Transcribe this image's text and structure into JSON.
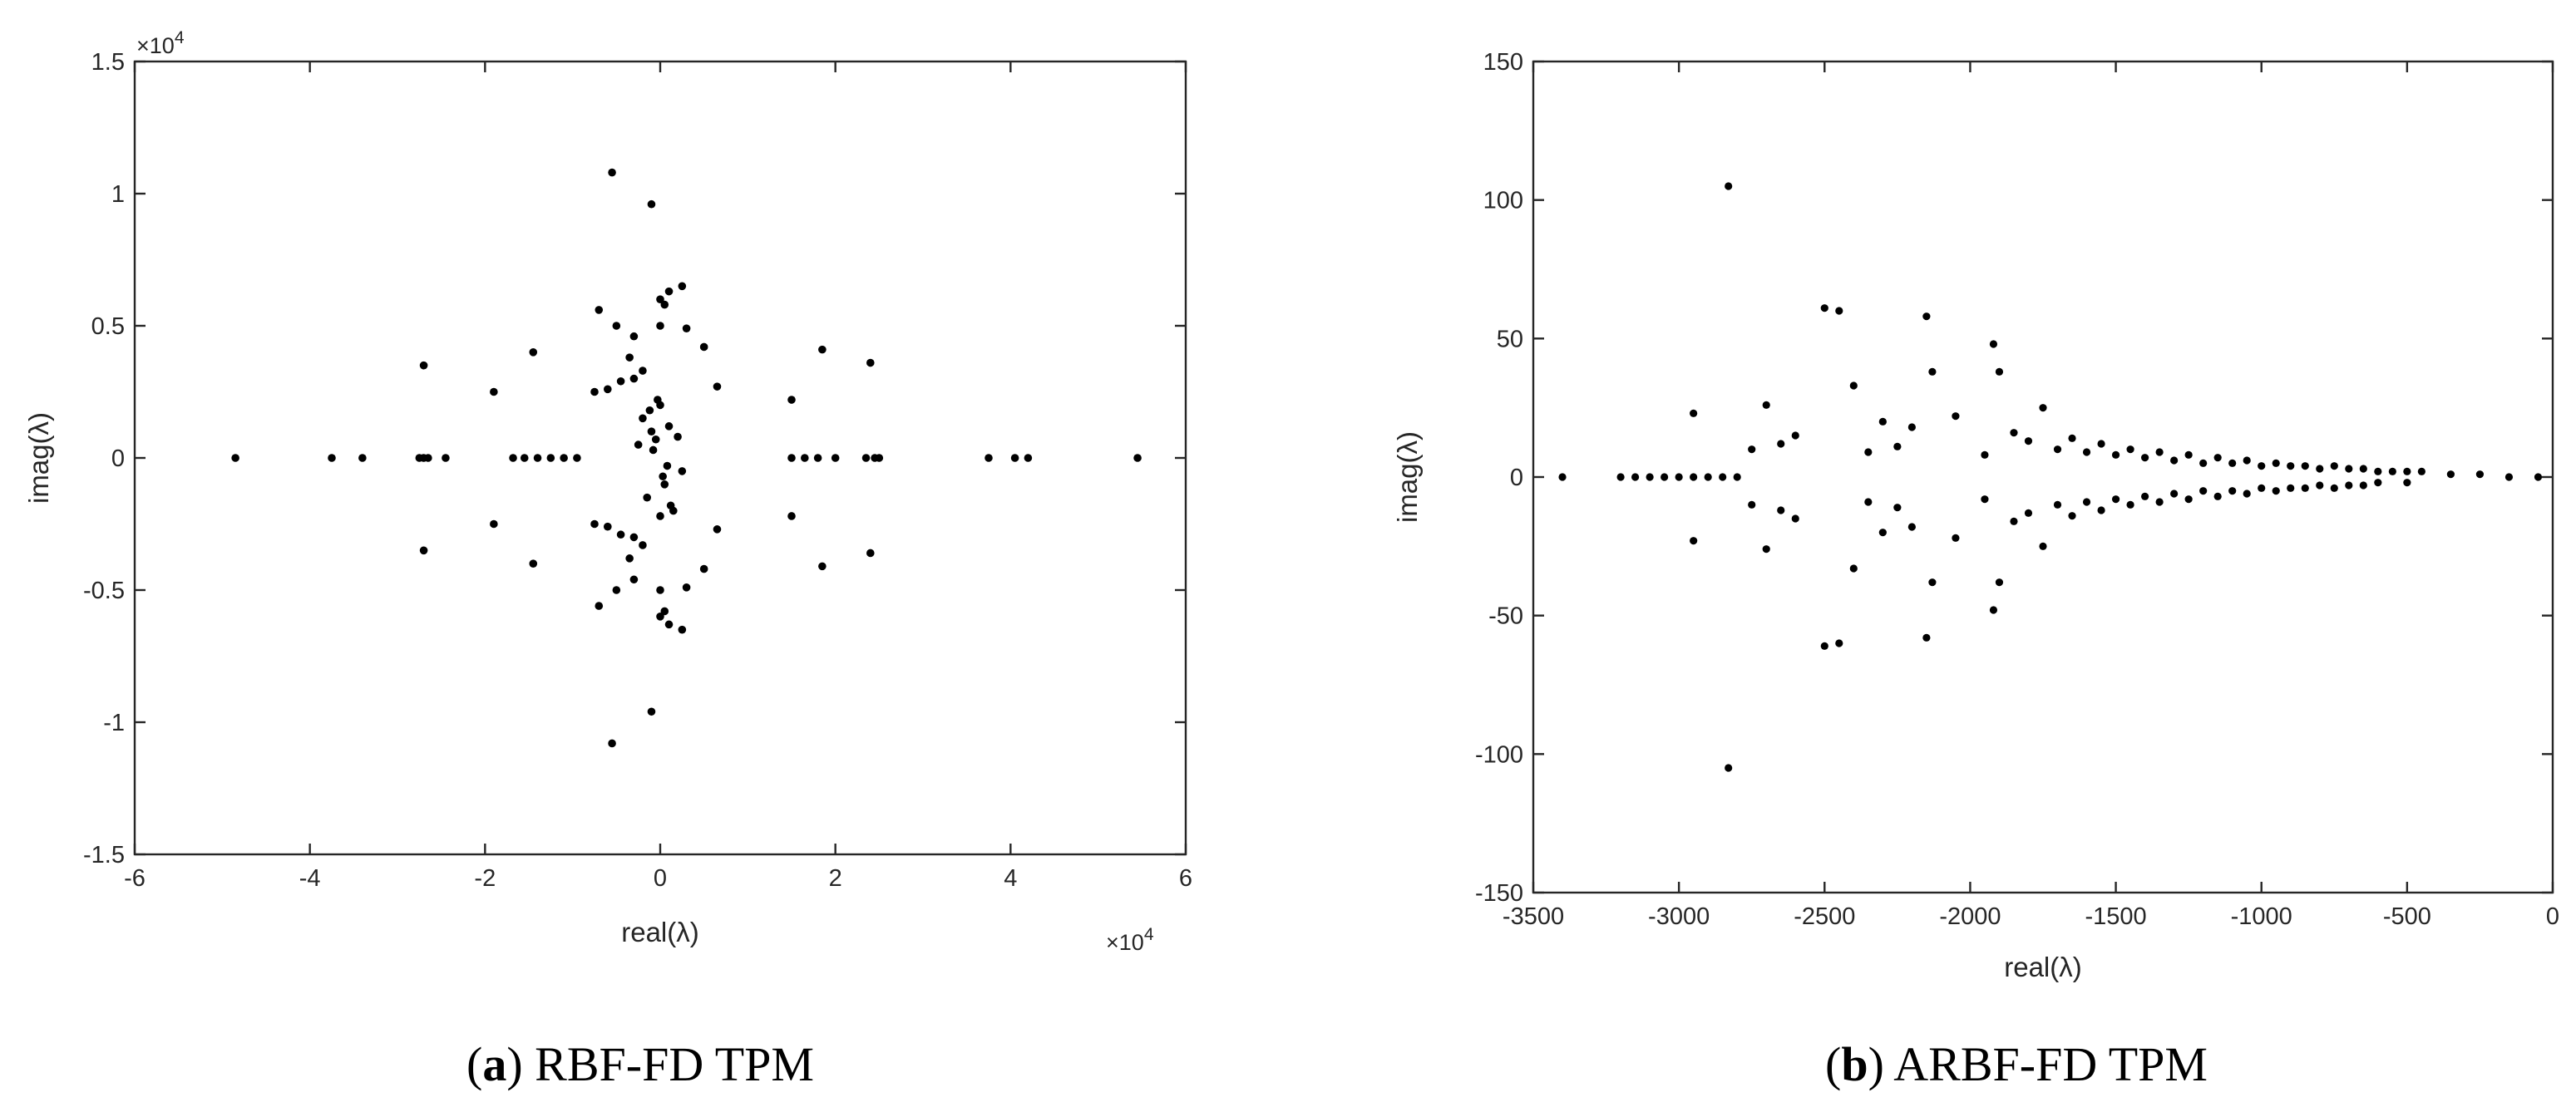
{
  "chart_data": [
    {
      "type": "scatter",
      "panel": "(a)",
      "caption_letter": "a",
      "caption_text": "RBF-FD TPM",
      "xlabel": "real(λ)",
      "ylabel": "imag(λ)",
      "xlim": [
        -60000,
        60000
      ],
      "ylim": [
        -15000,
        15000
      ],
      "x_ticks": [
        -60000,
        -40000,
        -20000,
        0,
        20000,
        40000,
        60000
      ],
      "y_ticks": [
        -15000,
        -10000,
        -5000,
        0,
        5000,
        10000,
        15000
      ],
      "x_tick_labels": [
        "-6",
        "-4",
        "-2",
        "0",
        "2",
        "4",
        "6"
      ],
      "y_tick_labels": [
        "-1.5",
        "-1",
        "-0.5",
        "0",
        "0.5",
        "1",
        "1.5"
      ],
      "x_exponent_label": "×10",
      "x_exponent_power": "4",
      "y_exponent_label": "×10",
      "y_exponent_power": "4",
      "grid": false,
      "marker_color": "#000000",
      "x": [
        -48500,
        -37500,
        -34000,
        -27500,
        -27000,
        -26500,
        -24500,
        -16800,
        -15500,
        -14000,
        -12500,
        -11000,
        -9500,
        15000,
        16500,
        18000,
        20000,
        23500,
        24500,
        25000,
        37500,
        40500,
        42000,
        54500,
        -27000,
        -19000,
        -14500,
        -7000,
        -5500,
        -1000,
        2500,
        1000,
        0,
        18500,
        15000,
        24000,
        0,
        -3000,
        -3500,
        -6000,
        -7500,
        -5000,
        3000,
        5000,
        6500,
        500,
        -2000,
        -4500,
        -3000,
        -27000,
        -19000,
        -14500,
        -7000,
        -5500,
        -1000,
        2500,
        1000,
        0,
        18500,
        15000,
        24000,
        0,
        -3000,
        -3500,
        -6000,
        -7500,
        -5000,
        3000,
        5000,
        6500,
        500,
        -2000,
        -4500,
        -3000,
        -2000,
        -1000,
        0,
        1000,
        2000,
        -1500,
        500,
        1500,
        -2500,
        2500,
        -500,
        300,
        -800,
        800,
        -1200,
        1200,
        -300,
        0
      ],
      "y": [
        0,
        0,
        0,
        0,
        0,
        0,
        0,
        0,
        0,
        0,
        0,
        0,
        0,
        0,
        0,
        0,
        0,
        0,
        0,
        0,
        0,
        0,
        0,
        0,
        3500,
        2500,
        4000,
        5600,
        10800,
        9600,
        6500,
        6300,
        6000,
        4100,
        2200,
        3600,
        5000,
        4600,
        3800,
        2600,
        2500,
        5000,
        4900,
        4200,
        2700,
        5800,
        3300,
        2900,
        3000,
        -3500,
        -2500,
        -4000,
        -5600,
        -10800,
        -9600,
        -6500,
        -6300,
        -6000,
        -4100,
        -2200,
        -3600,
        -5000,
        -4600,
        -3800,
        -2600,
        -2500,
        -5000,
        -4900,
        -4200,
        -2700,
        -5800,
        -3300,
        -2900,
        -3000,
        1500,
        1000,
        2000,
        1200,
        800,
        -1500,
        -1000,
        -2000,
        500,
        -500,
        700,
        -700,
        300,
        -300,
        1800,
        -1800,
        2200,
        -2200
      ]
    },
    {
      "type": "scatter",
      "panel": "(b)",
      "caption_letter": "b",
      "caption_text": "ARBF-FD TPM",
      "xlabel": "real(λ)",
      "ylabel": "imag(λ)",
      "xlim": [
        -3500,
        0
      ],
      "ylim": [
        -150,
        150
      ],
      "x_ticks": [
        -3500,
        -3000,
        -2500,
        -2000,
        -1500,
        -1000,
        -500,
        0
      ],
      "y_ticks": [
        -150,
        -100,
        -50,
        0,
        50,
        100,
        150
      ],
      "x_tick_labels": [
        "-3500",
        "-3000",
        "-2500",
        "-2000",
        "-1500",
        "-1000",
        "-500",
        "0"
      ],
      "y_tick_labels": [
        "-150",
        "-100",
        "-50",
        "0",
        "50",
        "100",
        "150"
      ],
      "grid": false,
      "marker_color": "#000000",
      "x": [
        -3400,
        -3200,
        -3150,
        -3100,
        -3050,
        -3000,
        -2950,
        -2900,
        -2850,
        -2800,
        -2830,
        -2830,
        -2950,
        -2950,
        -2700,
        -2700,
        -2500,
        -2500,
        -2450,
        -2450,
        -2400,
        -2400,
        -2150,
        -2150,
        -2130,
        -2130,
        -1920,
        -1920,
        -1900,
        -1900,
        -1750,
        -1750,
        -2600,
        -2600,
        -2300,
        -2300,
        -2200,
        -2200,
        -2050,
        -2050,
        -1850,
        -1850,
        -1650,
        -1650,
        -1550,
        -1550,
        -1450,
        -1450,
        -1350,
        -1350,
        -1250,
        -1250,
        -1150,
        -1150,
        -1050,
        -1050,
        -950,
        -950,
        -850,
        -850,
        -750,
        -750,
        -650,
        -650,
        -550,
        -450,
        -350,
        -250,
        -150,
        -50,
        -2750,
        -2750,
        -2650,
        -2650,
        -2350,
        -2350,
        -2250,
        -2250,
        -1950,
        -1950,
        -1800,
        -1800,
        -1700,
        -1700,
        -1600,
        -1600,
        -1500,
        -1500,
        -1400,
        -1400,
        -1300,
        -1300,
        -1200,
        -1200,
        -1100,
        -1100,
        -1000,
        -1000,
        -900,
        -900,
        -800,
        -800,
        -700,
        -700,
        -600,
        -600,
        -500,
        -500
      ],
      "y": [
        0,
        0,
        0,
        0,
        0,
        0,
        0,
        0,
        0,
        0,
        105,
        -105,
        23,
        -23,
        26,
        -26,
        61,
        -61,
        60,
        -60,
        33,
        -33,
        58,
        -58,
        38,
        -38,
        48,
        -48,
        38,
        -38,
        25,
        -25,
        15,
        -15,
        20,
        -20,
        18,
        -18,
        22,
        -22,
        16,
        -16,
        14,
        -14,
        12,
        -12,
        10,
        -10,
        9,
        -9,
        8,
        -8,
        7,
        -7,
        6,
        -6,
        5,
        -5,
        4,
        -4,
        4,
        -4,
        3,
        -3,
        2,
        2,
        1,
        1,
        0,
        0,
        10,
        -10,
        12,
        -12,
        9,
        -9,
        11,
        -11,
        8,
        -8,
        13,
        -13,
        10,
        -10,
        9,
        -9,
        8,
        -8,
        7,
        -7,
        6,
        -6,
        5,
        -5,
        5,
        -5,
        4,
        -4,
        4,
        -4,
        3,
        -3,
        3,
        -3,
        2,
        -2,
        2,
        -2
      ]
    }
  ]
}
